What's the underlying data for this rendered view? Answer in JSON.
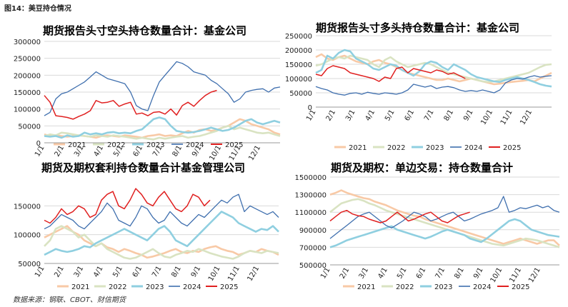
{
  "figure_label": "图14：美豆持仓情况",
  "source": "数据来源：钢联、CBOT、财信期货",
  "colors": {
    "2021": "#f8c9a6",
    "2022": "#d9e3c2",
    "2023": "#8fcfe0",
    "2024": "#3f6fae",
    "2025": "#e02020",
    "grid": "#d9d9d9"
  },
  "chart_data": [
    {
      "type": "line",
      "title": "期货报告头寸空头持仓数量合计：基金公司",
      "x_labels": [
        "1/1",
        "2/1",
        "3/1",
        "4/1",
        "5/1",
        "6/1",
        "7/1",
        "8/1",
        "9/1",
        "10/1",
        "11/1",
        "12/1"
      ],
      "y_ticks": [
        "0",
        "50000",
        "100000",
        "150000",
        "200000",
        "250000",
        "300000"
      ],
      "ylim": [
        0,
        300000
      ],
      "legend": [
        "2021",
        "2022",
        "2023",
        "2024",
        "2025"
      ],
      "series": [
        {
          "name": "2021",
          "values": [
            25000,
            20000,
            22000,
            20000,
            18000,
            20000,
            22000,
            20000,
            18000,
            15000,
            20000,
            22000,
            20000,
            18000,
            22000,
            20000,
            18000,
            15000,
            20000,
            22000,
            25000,
            20000,
            22000,
            20000,
            28000,
            35000,
            30000,
            38000,
            40000,
            35000,
            38000,
            45000,
            50000,
            60000,
            70000,
            65000,
            55000,
            50000,
            45000,
            40000,
            30000,
            25000
          ]
        },
        {
          "name": "2022",
          "values": [
            20000,
            25000,
            22000,
            30000,
            28000,
            25000,
            22000,
            20000,
            18000,
            22000,
            20000,
            18000,
            22000,
            20000,
            18000,
            15000,
            12000,
            15000,
            12000,
            10000,
            15000,
            12000,
            15000,
            18000,
            20000,
            15000,
            18000,
            20000,
            25000,
            30000,
            35000,
            45000,
            50000,
            40000,
            45000,
            40000,
            35000,
            30000,
            28000,
            30000,
            25000,
            20000
          ]
        },
        {
          "name": "2023",
          "values": [
            20000,
            18000,
            20000,
            15000,
            22000,
            18000,
            20000,
            30000,
            25000,
            28000,
            25000,
            30000,
            32000,
            28000,
            30000,
            28000,
            35000,
            40000,
            55000,
            70000,
            75000,
            70000,
            50000,
            35000,
            32000,
            30000,
            32000,
            35000,
            40000,
            45000,
            40000,
            35000,
            38000,
            45000,
            55000,
            65000,
            70000,
            60000,
            55000,
            60000,
            65000,
            60000
          ]
        },
        {
          "name": "2024",
          "values": [
            80000,
            90000,
            130000,
            145000,
            150000,
            160000,
            170000,
            180000,
            195000,
            210000,
            200000,
            190000,
            185000,
            180000,
            175000,
            150000,
            110000,
            100000,
            95000,
            140000,
            180000,
            200000,
            220000,
            240000,
            235000,
            225000,
            210000,
            205000,
            200000,
            185000,
            175000,
            160000,
            145000,
            120000,
            130000,
            150000,
            155000,
            158000,
            160000,
            150000,
            162000,
            165000
          ]
        },
        {
          "name": "2025",
          "values": [
            140000,
            120000,
            80000,
            78000,
            75000,
            70000,
            78000,
            85000,
            95000,
            125000,
            118000,
            120000,
            125000,
            108000,
            115000,
            120000,
            85000,
            88000,
            80000,
            90000,
            92000,
            85000,
            100000,
            82000,
            110000,
            120000,
            108000,
            125000,
            140000,
            150000,
            155000
          ]
        }
      ]
    },
    {
      "type": "line",
      "title": "期货报告头寸多头持仓数量合计：基金公司",
      "x_labels": [
        "1/1",
        "2/1",
        "3/1",
        "4/1",
        "5/1",
        "6/1",
        "7/1",
        "8/1",
        "9/1",
        "10/1",
        "11/1",
        "12/1"
      ],
      "y_ticks": [
        "0",
        "50000",
        "100000",
        "150000",
        "200000",
        "250000"
      ],
      "ylim": [
        0,
        250000
      ],
      "legend": [
        "2021",
        "2022",
        "2023",
        "2024",
        "2025"
      ],
      "series": [
        {
          "name": "2021",
          "values": [
            175000,
            185000,
            170000,
            165000,
            175000,
            180000,
            170000,
            160000,
            155000,
            150000,
            160000,
            165000,
            155000,
            150000,
            140000,
            130000,
            120000,
            115000,
            110000,
            105000,
            100000,
            95000,
            95000,
            100000,
            95000,
            90000,
            95000,
            100000,
            95000,
            90000,
            85000,
            80000,
            82000,
            85000,
            88000,
            90000,
            92000,
            95000,
            90000,
            100000,
            110000,
            120000
          ]
        },
        {
          "name": "2022",
          "values": [
            145000,
            150000,
            160000,
            170000,
            175000,
            170000,
            180000,
            175000,
            170000,
            165000,
            150000,
            140000,
            165000,
            175000,
            160000,
            150000,
            140000,
            145000,
            150000,
            155000,
            150000,
            140000,
            130000,
            120000,
            115000,
            110000,
            105000,
            100000,
            95000,
            90000,
            88000,
            90000,
            95000,
            100000,
            105000,
            110000,
            115000,
            120000,
            130000,
            140000,
            148000,
            150000
          ]
        },
        {
          "name": "2023",
          "values": [
            120000,
            130000,
            180000,
            170000,
            190000,
            200000,
            195000,
            170000,
            160000,
            150000,
            135000,
            130000,
            140000,
            150000,
            145000,
            130000,
            120000,
            110000,
            125000,
            150000,
            160000,
            155000,
            140000,
            130000,
            150000,
            140000,
            130000,
            115000,
            105000,
            100000,
            95000,
            90000,
            88000,
            95000,
            100000,
            105000,
            100000,
            95000,
            88000,
            80000,
            75000,
            72000
          ]
        },
        {
          "name": "2024",
          "values": [
            72000,
            65000,
            60000,
            50000,
            45000,
            42000,
            48000,
            50000,
            45000,
            52000,
            48000,
            45000,
            50000,
            48000,
            45000,
            50000,
            60000,
            80000,
            75000,
            70000,
            75000,
            65000,
            70000,
            72000,
            68000,
            60000,
            55000,
            58000,
            55000,
            60000,
            55000,
            50000,
            60000,
            85000,
            95000,
            100000,
            98000,
            105000,
            110000,
            105000,
            108000,
            110000
          ]
        },
        {
          "name": "2025",
          "values": [
            115000,
            110000,
            135000,
            145000,
            140000,
            135000,
            120000,
            115000,
            110000,
            105000,
            100000,
            90000,
            105000,
            100000,
            135000,
            140000,
            120000,
            135000,
            130000,
            125000,
            120000,
            130000,
            125000,
            115000,
            120000,
            110000,
            100000
          ]
        }
      ]
    },
    {
      "type": "line",
      "title": "期货及期权套利持仓数量合计基金管理公司",
      "x_labels": [
        "1/1",
        "2/1",
        "3/1",
        "4/1",
        "5/1",
        "6/1",
        "7/1",
        "8/1",
        "9/1",
        "10/1",
        "11/1",
        "12/1"
      ],
      "y_ticks": [
        "50000",
        "100000",
        "150000"
      ],
      "ylim": [
        50000,
        200000
      ],
      "legend": [
        "2021",
        "2022",
        "2023",
        "2024",
        "2025"
      ],
      "series": [
        {
          "name": "2021",
          "values": [
            95000,
            100000,
            105000,
            110000,
            115000,
            105000,
            100000,
            90000,
            85000,
            80000,
            85000,
            78000,
            75000,
            70000,
            75000,
            72000,
            68000,
            65000,
            60000,
            62000,
            65000,
            68000,
            72000,
            75000,
            70000,
            68000,
            72000,
            70000,
            75000,
            78000,
            80000,
            75000,
            72000,
            70000,
            65000,
            68000,
            72000,
            70000,
            75000,
            72000,
            70000,
            65000
          ]
        },
        {
          "name": "2022",
          "values": [
            80000,
            90000,
            110000,
            115000,
            110000,
            105000,
            95000,
            100000,
            90000,
            80000,
            85000,
            75000,
            70000,
            65000,
            60000,
            58000,
            60000,
            65000,
            70000,
            75000,
            68000,
            62000,
            60000,
            65000,
            68000,
            72000,
            70000,
            75000,
            72000,
            68000,
            65000,
            62000,
            60000,
            58000,
            62000,
            68000,
            72000,
            70000,
            68000,
            72000,
            70000,
            68000
          ]
        },
        {
          "name": "2023",
          "values": [
            65000,
            70000,
            75000,
            72000,
            70000,
            72000,
            75000,
            80000,
            78000,
            85000,
            90000,
            95000,
            100000,
            105000,
            110000,
            105000,
            100000,
            95000,
            90000,
            100000,
            110000,
            115000,
            105000,
            90000,
            85000,
            80000,
            90000,
            100000,
            110000,
            120000,
            130000,
            140000,
            135000,
            130000,
            120000,
            115000,
            110000,
            105000,
            110000,
            108000,
            115000,
            105000
          ]
        },
        {
          "name": "2024",
          "values": [
            110000,
            115000,
            125000,
            135000,
            130000,
            125000,
            115000,
            110000,
            120000,
            130000,
            140000,
            155000,
            145000,
            125000,
            120000,
            115000,
            130000,
            150000,
            145000,
            130000,
            120000,
            125000,
            140000,
            130000,
            120000,
            115000,
            125000,
            135000,
            130000,
            140000,
            150000,
            160000,
            155000,
            165000,
            170000,
            140000,
            150000,
            145000,
            140000,
            135000,
            140000,
            130000
          ]
        },
        {
          "name": "2025",
          "values": [
            125000,
            120000,
            130000,
            145000,
            135000,
            140000,
            150000,
            145000,
            130000,
            135000,
            160000,
            170000,
            175000,
            150000,
            145000,
            160000,
            180000,
            170000,
            155000,
            150000,
            165000,
            175000,
            160000,
            145000,
            140000,
            150000,
            170000,
            165000,
            150000,
            160000
          ]
        }
      ]
    },
    {
      "type": "line",
      "title": "期货及期权：单边交易：持仓数量合计",
      "x_labels": [
        "1/1",
        "2/1",
        "3/1",
        "4/1",
        "5/1",
        "6/1",
        "7/1",
        "8/1",
        "9/1",
        "10/1",
        "11/1",
        "12/1"
      ],
      "y_ticks": [
        "500000",
        "700000",
        "900000",
        "1100000",
        "1300000",
        "1500000"
      ],
      "ylim": [
        500000,
        1500000
      ],
      "legend": [
        "2021",
        "2022",
        "2023",
        "2024",
        "2025"
      ],
      "series": [
        {
          "name": "2021",
          "values": [
            1300000,
            1320000,
            1350000,
            1320000,
            1300000,
            1280000,
            1260000,
            1250000,
            1220000,
            1200000,
            1180000,
            1150000,
            1120000,
            1100000,
            1080000,
            1060000,
            1050000,
            1020000,
            1000000,
            980000,
            960000,
            940000,
            920000,
            900000,
            880000,
            860000,
            840000,
            820000,
            800000,
            780000,
            760000,
            740000,
            760000,
            780000,
            800000,
            780000,
            760000,
            740000,
            760000,
            780000,
            780000,
            720000
          ]
        },
        {
          "name": "2022",
          "values": [
            1100000,
            1150000,
            1200000,
            1220000,
            1240000,
            1250000,
            1230000,
            1200000,
            1180000,
            1150000,
            1120000,
            1100000,
            1080000,
            1060000,
            1040000,
            1020000,
            1000000,
            980000,
            960000,
            940000,
            920000,
            900000,
            880000,
            860000,
            840000,
            820000,
            800000,
            780000,
            760000,
            740000,
            730000,
            720000,
            740000,
            760000,
            780000,
            800000,
            790000,
            780000,
            760000,
            740000,
            720000,
            700000
          ]
        },
        {
          "name": "2023",
          "values": [
            700000,
            720000,
            750000,
            780000,
            800000,
            820000,
            840000,
            860000,
            880000,
            900000,
            920000,
            940000,
            900000,
            880000,
            860000,
            840000,
            820000,
            800000,
            820000,
            850000,
            880000,
            900000,
            880000,
            860000,
            840000,
            800000,
            780000,
            760000,
            800000,
            850000,
            900000,
            950000,
            1000000,
            1020000,
            1000000,
            950000,
            900000,
            880000,
            860000,
            840000,
            830000,
            820000
          ]
        },
        {
          "name": "2024",
          "values": [
            800000,
            850000,
            900000,
            950000,
            1000000,
            1050000,
            1080000,
            1100000,
            1050000,
            1000000,
            950000,
            920000,
            960000,
            1000000,
            1050000,
            1100000,
            1080000,
            1050000,
            1000000,
            1020000,
            1050000,
            1080000,
            1100000,
            1050000,
            1000000,
            1020000,
            1050000,
            1080000,
            1100000,
            1120000,
            1150000,
            1280000,
            1100000,
            1120000,
            1150000,
            1140000,
            1160000,
            1180000,
            1150000,
            1170000,
            1120000,
            1100000
          ]
        },
        {
          "name": "2025",
          "values": [
            1000000,
            1050000,
            1100000,
            1120000,
            1080000,
            1060000,
            1050000,
            1020000,
            1000000,
            980000,
            1000000,
            1050000,
            1100000,
            1050000,
            1000000,
            1020000,
            1050000,
            1080000,
            1100000,
            1050000,
            1000000,
            980000,
            1020000,
            1060000,
            1080000,
            1100000
          ]
        }
      ]
    }
  ]
}
